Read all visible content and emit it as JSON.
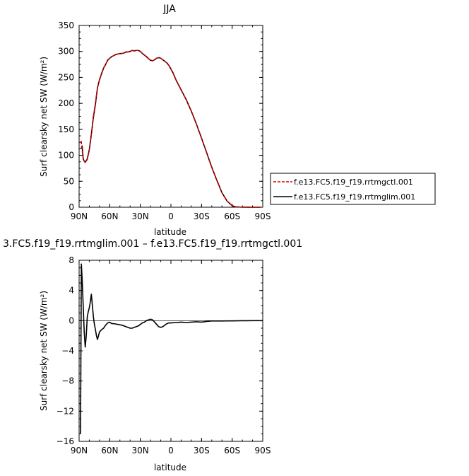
{
  "chart_data": [
    {
      "type": "line",
      "title": "JJA",
      "xlabel": "latitude",
      "ylabel": "Surf clearsky net SW (W/m²)",
      "xlim": [
        90,
        -90
      ],
      "ylim": [
        0,
        350
      ],
      "xtick_labels": [
        "90N",
        "60N",
        "30N",
        "0",
        "30S",
        "60S",
        "90S"
      ],
      "xtick_values": [
        90,
        60,
        30,
        0,
        -30,
        -60,
        -90
      ],
      "ytick_values": [
        0,
        50,
        100,
        150,
        200,
        250,
        300,
        350
      ],
      "ytick_labels": [
        "0",
        "50",
        "100",
        "150",
        "200",
        "250",
        "300",
        "350"
      ],
      "grid": false,
      "legend_position": "right",
      "series": [
        {
          "name": "f.e13.FC5.f19_f19.rrtmgctl.001",
          "color": "#cc0000",
          "dash": "dashed",
          "x": [
            88,
            87,
            86,
            85,
            84,
            82,
            80,
            78,
            76,
            74,
            72,
            70,
            68,
            66,
            64,
            62,
            60,
            58,
            56,
            54,
            52,
            50,
            48,
            46,
            44,
            42,
            40,
            38,
            36,
            34,
            32,
            30,
            28,
            26,
            24,
            22,
            20,
            18,
            16,
            14,
            12,
            10,
            8,
            6,
            4,
            2,
            0,
            -2,
            -5,
            -10,
            -15,
            -20,
            -25,
            -30,
            -35,
            -40,
            -45,
            -50,
            -55,
            -60,
            -62,
            -64,
            -66,
            -68,
            -70,
            -74,
            -78,
            -82,
            -86,
            -88
          ],
          "y": [
            128,
            110,
            95,
            89,
            86,
            92,
            110,
            140,
            175,
            200,
            230,
            245,
            258,
            268,
            275,
            283,
            287,
            290,
            292,
            294,
            295,
            296,
            296,
            297,
            299,
            299,
            300,
            302,
            301,
            302,
            302,
            300,
            296,
            293,
            290,
            286,
            283,
            282,
            284,
            287,
            288,
            287,
            284,
            281,
            278,
            273,
            266,
            259,
            245,
            226,
            207,
            185,
            160,
            133,
            105,
            77,
            52,
            28,
            12,
            3,
            1.5,
            0.8,
            0.5,
            0.3,
            0.2,
            0.1,
            0,
            0,
            0,
            0
          ]
        },
        {
          "name": "f.e13.FC5.f19_f19.rrtmglim.001",
          "color": "#000000",
          "dash": "solid",
          "x": [
            88,
            87,
            86,
            85,
            84,
            82,
            80,
            78,
            76,
            74,
            72,
            70,
            68,
            66,
            64,
            62,
            60,
            58,
            56,
            54,
            52,
            50,
            48,
            46,
            44,
            42,
            40,
            38,
            36,
            34,
            32,
            30,
            28,
            26,
            24,
            22,
            20,
            18,
            16,
            14,
            12,
            10,
            8,
            6,
            4,
            2,
            0,
            -2,
            -5,
            -10,
            -15,
            -20,
            -25,
            -30,
            -35,
            -40,
            -45,
            -50,
            -55,
            -60,
            -62,
            -64,
            -66,
            -68,
            -70,
            -74,
            -78,
            -82,
            -86,
            -88
          ],
          "y": [
            113,
            118,
            93,
            89,
            86.5,
            93,
            111,
            140.5,
            173,
            198,
            230,
            245.5,
            257,
            268,
            275,
            283,
            287,
            290,
            292,
            294,
            295,
            296,
            296,
            297,
            299,
            299,
            300,
            302,
            301,
            302,
            302,
            300,
            296,
            293,
            290,
            286,
            283,
            282,
            284,
            287,
            288,
            287,
            284,
            281,
            278,
            273,
            266,
            259,
            245,
            226,
            207,
            185,
            160,
            133,
            105,
            77,
            52,
            28,
            12,
            3,
            1.5,
            0.8,
            0.5,
            0.3,
            0.2,
            0.1,
            0,
            0,
            0,
            0
          ]
        }
      ]
    },
    {
      "type": "line",
      "title": "3.FC5.f19_f19.rrtmglim.001 – f.e13.FC5.f19_f19.rrtmgctl.001",
      "xlabel": "latitude",
      "ylabel": "Surf clearsky net SW (W/m²)",
      "xlim": [
        90,
        -90
      ],
      "ylim": [
        -16,
        8
      ],
      "xtick_labels": [
        "90N",
        "60N",
        "30N",
        "0",
        "30S",
        "60S",
        "90S"
      ],
      "xtick_values": [
        90,
        60,
        30,
        0,
        -30,
        -60,
        -90
      ],
      "ytick_values": [
        8,
        4,
        0,
        -4,
        -8,
        -12,
        -16
      ],
      "ytick_labels": [
        "8",
        "4",
        "0",
        "−4",
        "−8",
        "−12",
        "−16"
      ],
      "grid": false,
      "series": [
        {
          "color": "#000000",
          "x": [
            88.6,
            87.8,
            87,
            86,
            85,
            84,
            83,
            82,
            81,
            80,
            79,
            78,
            77,
            76,
            75,
            74,
            73,
            72,
            70,
            68,
            66,
            64,
            62,
            60,
            58,
            56,
            52,
            48,
            44,
            40,
            38,
            36,
            34,
            32,
            30,
            28,
            26,
            24,
            22,
            20,
            18,
            16,
            14,
            12,
            10,
            8,
            6,
            4,
            2,
            0,
            -5,
            -10,
            -15,
            -20,
            -25,
            -30,
            -35,
            -40,
            -45,
            -50,
            -55,
            -60,
            -65,
            -70,
            -75,
            -80,
            -85,
            -90
          ],
          "y": [
            -15,
            7.5,
            5.5,
            2,
            -1.5,
            -3.5,
            -2,
            0.5,
            1.2,
            1.7,
            2.5,
            3.5,
            2,
            0.5,
            -0.5,
            -1.2,
            -2,
            -2.5,
            -1.5,
            -1.2,
            -1,
            -0.6,
            -0.3,
            -0.2,
            -0.4,
            -0.4,
            -0.5,
            -0.6,
            -0.8,
            -1,
            -1,
            -0.9,
            -0.8,
            -0.7,
            -0.5,
            -0.3,
            -0.2,
            0,
            0.1,
            0.2,
            0.1,
            -0.2,
            -0.5,
            -0.8,
            -0.9,
            -0.8,
            -0.6,
            -0.4,
            -0.3,
            -0.3,
            -0.25,
            -0.2,
            -0.25,
            -0.2,
            -0.15,
            -0.2,
            -0.1,
            -0.05,
            -0.05,
            -0.05,
            -0.03,
            -0.03,
            -0.02,
            -0.01,
            -0.01,
            0,
            0,
            0
          ]
        }
      ]
    }
  ]
}
